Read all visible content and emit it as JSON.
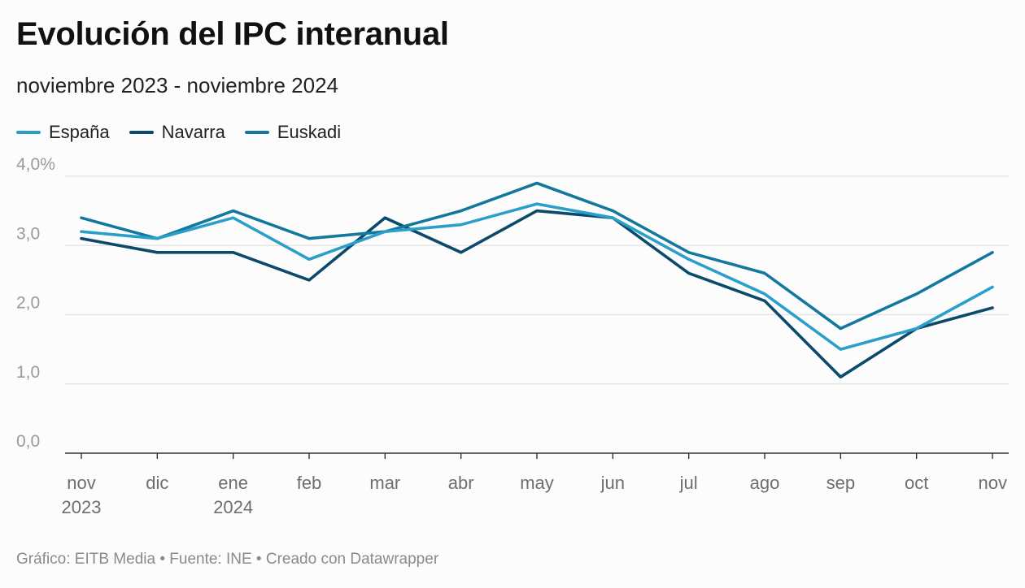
{
  "chart_data": {
    "type": "line",
    "title": "Evolución del IPC interanual",
    "subtitle": "noviembre 2023 - noviembre 2024",
    "categories": [
      "nov",
      "dic",
      "ene",
      "feb",
      "mar",
      "abr",
      "may",
      "jun",
      "jul",
      "ago",
      "sep",
      "oct",
      "nov"
    ],
    "category_sublabels": [
      "2023",
      "",
      "2024",
      "",
      "",
      "",
      "",
      "",
      "",
      "",
      "",
      "",
      ""
    ],
    "y_ticks": [
      "0,0",
      "1,0",
      "2,0",
      "3,0",
      "4,0%"
    ],
    "y_tick_values": [
      0,
      1,
      2,
      3,
      4
    ],
    "ylim": [
      0,
      4
    ],
    "grid": true,
    "legend_position": "top-left",
    "series": [
      {
        "name": "España",
        "color": "#2a9fc9",
        "values": [
          3.2,
          3.1,
          3.4,
          2.8,
          3.2,
          3.3,
          3.6,
          3.4,
          2.8,
          2.3,
          1.5,
          1.8,
          2.4
        ]
      },
      {
        "name": "Navarra",
        "color": "#0b4a6b",
        "values": [
          3.1,
          2.9,
          2.9,
          2.5,
          3.4,
          2.9,
          3.5,
          3.4,
          2.6,
          2.2,
          1.1,
          1.8,
          2.1
        ]
      },
      {
        "name": "Euskadi",
        "color": "#13789e",
        "values": [
          3.4,
          3.1,
          3.5,
          3.1,
          3.2,
          3.5,
          3.9,
          3.5,
          2.9,
          2.6,
          1.8,
          2.3,
          2.9
        ]
      }
    ],
    "footer": "Gráfico: EITB Media • Fuente: INE • Creado con Datawrapper"
  }
}
